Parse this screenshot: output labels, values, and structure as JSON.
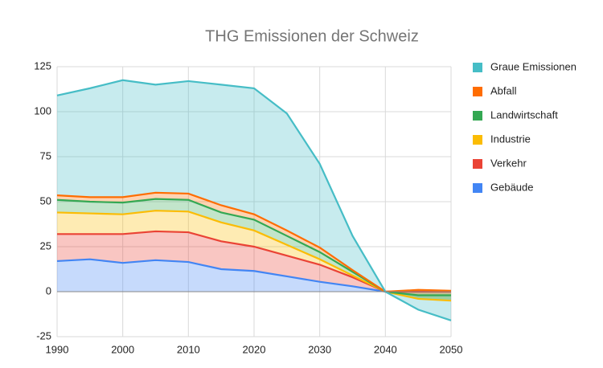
{
  "chart_data": {
    "type": "stacked_area",
    "title": "THG Emissionen der Schweiz",
    "x": [
      1990,
      1995,
      2000,
      2005,
      2010,
      2015,
      2020,
      2025,
      2030,
      2035,
      2040,
      2045,
      2050
    ],
    "series": [
      {
        "name": "Gebäude",
        "color": "#4285f4",
        "values": [
          17,
          18,
          16,
          17.5,
          16.5,
          12.5,
          11.5,
          8.5,
          5.5,
          3,
          0,
          0,
          0
        ]
      },
      {
        "name": "Verkehr",
        "color": "#ea4335",
        "values": [
          15,
          14,
          16,
          16,
          16.5,
          15.5,
          13.5,
          11.5,
          9.5,
          5,
          0,
          0,
          0
        ]
      },
      {
        "name": "Industrie",
        "color": "#fbbc04",
        "values": [
          12,
          11.5,
          11,
          11.5,
          11.5,
          10.5,
          9,
          6,
          3,
          1,
          0,
          -4,
          -5
        ]
      },
      {
        "name": "Landwirtschaft",
        "color": "#34a853",
        "values": [
          7,
          6.5,
          6.5,
          6.5,
          6.5,
          5.5,
          6,
          5,
          4,
          2,
          0,
          2,
          3
        ]
      },
      {
        "name": "Abfall",
        "color": "#ff6d01",
        "values": [
          2.5,
          2.5,
          3,
          3.5,
          3.5,
          4,
          3,
          3,
          2.5,
          1,
          0,
          3,
          2.5
        ]
      },
      {
        "name": "Graue Emissionen",
        "color": "#46bdc6",
        "values": [
          55.5,
          60.5,
          65,
          60,
          62.5,
          67,
          70,
          65,
          46.5,
          19,
          0,
          -11,
          -16.5
        ]
      }
    ],
    "xlim": [
      1990,
      2050
    ],
    "xticks": [
      1990,
      2000,
      2010,
      2020,
      2030,
      2040,
      2050
    ],
    "ylim": [
      -25,
      125
    ],
    "yticks": [
      -25,
      0,
      25,
      50,
      75,
      100,
      125
    ],
    "grid": true,
    "legend": "right"
  }
}
